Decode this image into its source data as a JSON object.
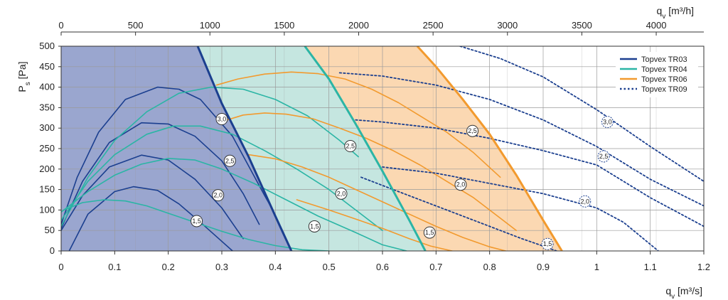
{
  "chart_data": {
    "type": "line",
    "title": "",
    "xlabel": "q_v [m³/s]",
    "x2label": "q_v [m³/h]",
    "ylabel": "P_s [Pa]",
    "xlim": [
      0,
      1.2
    ],
    "ylim": [
      0,
      500
    ],
    "x2lim": [
      0,
      4320
    ],
    "grid": true,
    "legend_position": "top-right",
    "x_ticks": [
      "0",
      "0.1",
      "0.2",
      "0.3",
      "0.4",
      "0.5",
      "0.6",
      "0.7",
      "0.8",
      "0.9",
      "1",
      "1.1",
      "1.2"
    ],
    "x_tick_values": [
      0,
      0.1,
      0.2,
      0.3,
      0.4,
      0.5,
      0.6,
      0.7,
      0.8,
      0.9,
      1.0,
      1.1,
      1.2
    ],
    "y_ticks": [
      "0",
      "50",
      "100",
      "150",
      "200",
      "250",
      "300",
      "350",
      "400",
      "450",
      "500"
    ],
    "y_tick_values": [
      0,
      50,
      100,
      150,
      200,
      250,
      300,
      350,
      400,
      450,
      500
    ],
    "x2_ticks": [
      "0",
      "500",
      "1000",
      "1500",
      "2000",
      "2500",
      "3000",
      "3500",
      "4000"
    ],
    "x2_tick_values": [
      0,
      500,
      1000,
      1500,
      2000,
      2500,
      3000,
      3500,
      4000
    ],
    "colors": {
      "tr03": "#1b3f8f",
      "tr04": "#2bb5a5",
      "tr06": "#f29a2e",
      "tr09": "#1b3f8f",
      "region_tr03": "#9aa6cf",
      "region_tr04": "#c5e6e0",
      "region_tr06": "#fbd8b2",
      "grid": "#9a9a9a"
    },
    "series": [
      {
        "name": "Topvex TR03",
        "key": "tr03",
        "style": "solid",
        "envelope": {
          "x": [
            0.255,
            0.3,
            0.35,
            0.4,
            0.43
          ],
          "y": [
            500,
            360,
            230,
            85,
            0
          ]
        },
        "curves": [
          {
            "label": "3,0",
            "x": [
              0,
              0.03,
              0.07,
              0.12,
              0.18,
              0.22,
              0.26,
              0.32,
              0.38,
              0.395
            ],
            "y": [
              65,
              180,
              290,
              370,
              400,
              395,
              370,
              280,
              135,
              100
            ]
          },
          {
            "label": "2,5",
            "x": [
              0,
              0.04,
              0.09,
              0.15,
              0.2,
              0.25,
              0.3,
              0.34,
              0.37
            ],
            "y": [
              55,
              170,
              265,
              313,
              310,
              280,
              220,
              140,
              65
            ]
          },
          {
            "label": "2,0",
            "x": [
              0,
              0.04,
              0.09,
              0.15,
              0.2,
              0.25,
              0.3,
              0.34
            ],
            "y": [
              50,
              135,
              205,
              234,
              222,
              175,
              105,
              30
            ]
          },
          {
            "label": "1,5",
            "x": [
              0.015,
              0.05,
              0.1,
              0.135,
              0.18,
              0.22,
              0.26,
              0.29,
              0.32
            ],
            "y": [
              0,
              90,
              145,
              157,
              148,
              115,
              70,
              35,
              0
            ]
          }
        ]
      },
      {
        "name": "Topvex TR04",
        "key": "tr04",
        "style": "solid",
        "envelope": {
          "x": [
            0.455,
            0.5,
            0.55,
            0.6,
            0.65,
            0.68
          ],
          "y": [
            500,
            420,
            310,
            195,
            75,
            0
          ]
        },
        "curves": [
          {
            "label": "3,0",
            "x": [
              0,
              0.05,
              0.1,
              0.16,
              0.22,
              0.28,
              0.34,
              0.4,
              0.46,
              0.52,
              0.555
            ],
            "y": [
              60,
              180,
              270,
              340,
              385,
              400,
              395,
              370,
              330,
              270,
              230
            ]
          },
          {
            "label": "2,5",
            "x": [
              0,
              0.05,
              0.1,
              0.16,
              0.21,
              0.26,
              0.32,
              0.38,
              0.44,
              0.5,
              0.55,
              0.6
            ],
            "y": [
              75,
              170,
              235,
              285,
              305,
              305,
              285,
              245,
              200,
              150,
              100,
              50
            ]
          },
          {
            "label": "2,0",
            "x": [
              0,
              0.05,
              0.1,
              0.15,
              0.2,
              0.25,
              0.3,
              0.36,
              0.42,
              0.48,
              0.55,
              0.6,
              0.645
            ],
            "y": [
              95,
              145,
              185,
              212,
              226,
              222,
              200,
              165,
              125,
              85,
              45,
              15,
              0
            ]
          },
          {
            "label": "1,5",
            "x": [
              0.005,
              0.04,
              0.08,
              0.12,
              0.16,
              0.2,
              0.25,
              0.3,
              0.35,
              0.4,
              0.45,
              0.5
            ],
            "y": [
              100,
              118,
              125,
              122,
              110,
              92,
              70,
              48,
              28,
              13,
              3,
              0
            ]
          }
        ]
      },
      {
        "name": "Topvex TR06",
        "key": "tr06",
        "style": "solid",
        "envelope": {
          "x": [
            0.665,
            0.7,
            0.75,
            0.8,
            0.85,
            0.9,
            0.935
          ],
          "y": [
            500,
            450,
            370,
            285,
            185,
            75,
            0
          ]
        },
        "curves": [
          {
            "label": "3,0",
            "x": [
              0.29,
              0.33,
              0.38,
              0.43,
              0.48,
              0.53,
              0.58,
              0.63,
              0.67,
              0.72,
              0.77,
              0.82
            ],
            "y": [
              405,
              420,
              432,
              437,
              433,
              420,
              395,
              362,
              330,
              290,
              240,
              180
            ]
          },
          {
            "label": "2,5",
            "x": [
              0.31,
              0.34,
              0.38,
              0.42,
              0.47,
              0.52,
              0.57,
              0.62,
              0.67,
              0.72,
              0.77,
              0.82,
              0.85
            ],
            "y": [
              320,
              332,
              337,
              334,
              323,
              300,
              275,
              245,
              210,
              170,
              130,
              80,
              50
            ]
          },
          {
            "label": "2,0",
            "x": [
              0.35,
              0.4,
              0.45,
              0.5,
              0.55,
              0.6,
              0.65,
              0.7,
              0.75,
              0.8,
              0.83
            ],
            "y": [
              235,
              225,
              205,
              180,
              150,
              120,
              90,
              60,
              33,
              10,
              0
            ]
          },
          {
            "label": "1,5",
            "x": [
              0.44,
              0.5,
              0.55,
              0.6,
              0.65,
              0.69,
              0.73
            ],
            "y": [
              125,
              100,
              78,
              55,
              30,
              12,
              0
            ]
          }
        ]
      },
      {
        "name": "Topvex TR09",
        "key": "tr09",
        "style": "dotted",
        "curves": [
          {
            "label": "3,0",
            "x": [
              0.52,
              0.6,
              0.7,
              0.8,
              0.9,
              1.0,
              1.1,
              1.2
            ],
            "y": [
              435,
              427,
              405,
              370,
              320,
              255,
              175,
              110
            ]
          },
          {
            "label": "2,5",
            "x": [
              0.55,
              0.6,
              0.7,
              0.8,
              0.9,
              1.0,
              1.1,
              1.2
            ],
            "y": [
              320,
              315,
              300,
              275,
              245,
              210,
              130,
              60
            ]
          },
          {
            "label": "2,0",
            "x": [
              0.6,
              0.7,
              0.8,
              0.9,
              1.0,
              1.05,
              1.115
            ],
            "y": [
              205,
              190,
              165,
              140,
              105,
              70,
              0
            ]
          },
          {
            "label": "1,5",
            "x": [
              0.56,
              0.64,
              0.72,
              0.8,
              0.86,
              0.9,
              0.925
            ],
            "y": [
              180,
              140,
              100,
              60,
              30,
              12,
              0
            ]
          },
          {
            "label": "",
            "x": [
              0.745,
              0.82,
              0.9,
              1.0,
              1.1,
              1.2
            ],
            "y": [
              500,
              470,
              425,
              345,
              255,
              170
            ]
          }
        ]
      }
    ],
    "labels": [
      {
        "text": "3,0",
        "key": "tr03",
        "x": 0.3,
        "y": 322,
        "dashed": false
      },
      {
        "text": "2,5",
        "key": "tr03",
        "x": 0.315,
        "y": 220,
        "dashed": false
      },
      {
        "text": "2,0",
        "key": "tr03",
        "x": 0.293,
        "y": 136,
        "dashed": false
      },
      {
        "text": "1,5",
        "key": "tr03",
        "x": 0.253,
        "y": 73,
        "dashed": false
      },
      {
        "text": "2,5",
        "key": "tr04",
        "x": 0.54,
        "y": 256,
        "dashed": false
      },
      {
        "text": "2,0",
        "key": "tr04",
        "x": 0.523,
        "y": 140,
        "dashed": false
      },
      {
        "text": "1,5",
        "key": "tr04",
        "x": 0.473,
        "y": 60,
        "dashed": false
      },
      {
        "text": "2,5",
        "key": "tr06",
        "x": 0.768,
        "y": 293,
        "dashed": false
      },
      {
        "text": "2,0",
        "key": "tr06",
        "x": 0.746,
        "y": 162,
        "dashed": false
      },
      {
        "text": "1,5",
        "key": "tr06",
        "x": 0.688,
        "y": 45,
        "dashed": false
      },
      {
        "text": "3,0",
        "key": "tr09",
        "x": 1.02,
        "y": 315,
        "dashed": true
      },
      {
        "text": "2,5",
        "key": "tr09",
        "x": 1.013,
        "y": 231,
        "dashed": true
      },
      {
        "text": "2,0",
        "key": "tr09",
        "x": 0.978,
        "y": 121,
        "dashed": true
      },
      {
        "text": "1,5",
        "key": "tr09",
        "x": 0.908,
        "y": 17,
        "dashed": true
      }
    ]
  }
}
